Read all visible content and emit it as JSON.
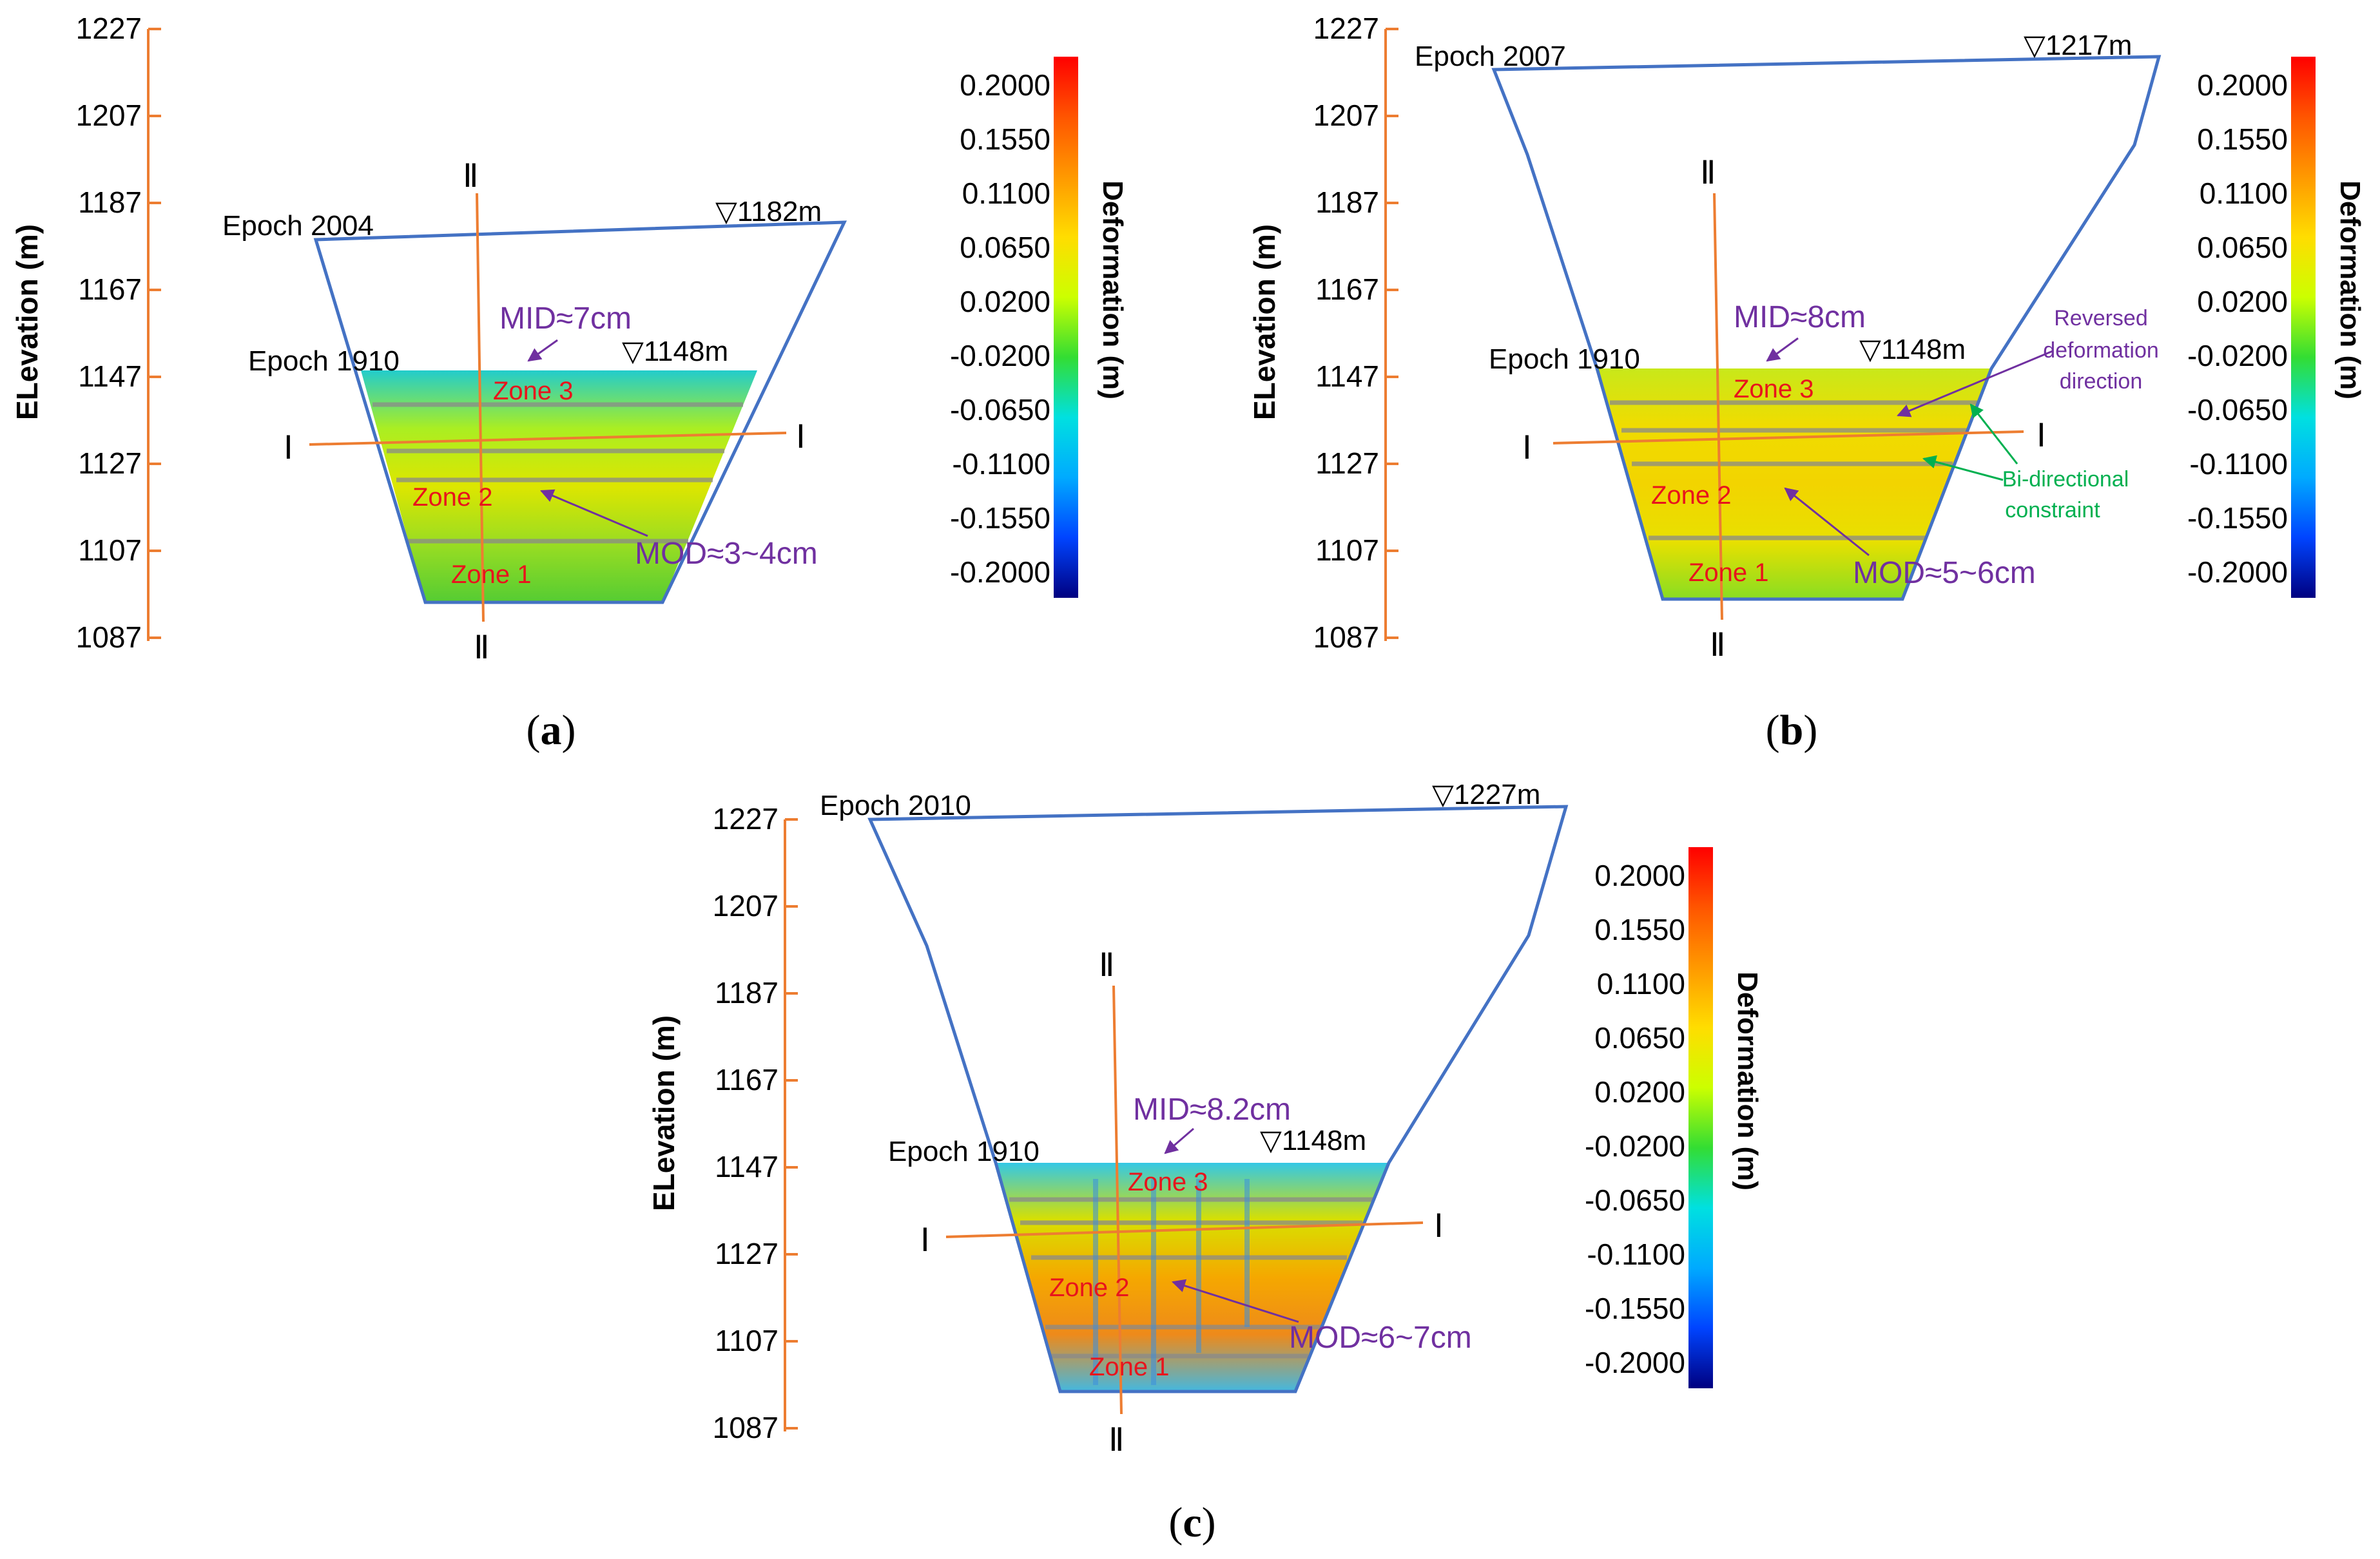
{
  "colors": {
    "outline": "#4472c4",
    "section_line": "#ed7d31",
    "axis": "#ed7d31",
    "annotation": "#7030a0",
    "zone_label": "#e8141c",
    "green_annotation": "#00b050",
    "text": "#000000"
  },
  "colorbar": {
    "title": "Deformation (m)",
    "ticks": [
      "0.2000",
      "0.1550",
      "0.1100",
      "0.0650",
      "0.0200",
      "-0.0200",
      "-0.0650",
      "-0.1100",
      "-0.1550",
      "-0.2000"
    ],
    "stops": [
      "#ff0000",
      "#ff5500",
      "#ff9900",
      "#ffdd00",
      "#ccff00",
      "#33dd33",
      "#00e0e0",
      "#00aaff",
      "#0044ff",
      "#000080"
    ]
  },
  "axis": {
    "title": "ELevation (m)",
    "ticks": [
      "1227",
      "1207",
      "1187",
      "1167",
      "1147",
      "1127",
      "1107",
      "1087"
    ]
  },
  "panels": [
    {
      "id": "a",
      "caption_letter": "a",
      "epoch_top": "Epoch 2004",
      "top_level": "▽1182m",
      "epoch_base": "Epoch 1910",
      "base_level": "▽1148m",
      "mid_label": "MID≈7cm",
      "mod_label": "MOD≈3~4cm",
      "zones": [
        "Zone 1",
        "Zone 2",
        "Zone 3"
      ],
      "section_horizontal": "Ⅰ",
      "section_vertical": "Ⅱ",
      "palette": [
        "#22cccc",
        "#aaee22",
        "#dde600",
        "#99dd22",
        "#55cc33"
      ]
    },
    {
      "id": "b",
      "caption_letter": "b",
      "epoch_top": "Epoch 2007",
      "top_level": "▽1217m",
      "epoch_base": "Epoch 1910",
      "base_level": "▽1148m",
      "mid_label": "MID≈8cm",
      "mod_label": "MOD≈5~6cm",
      "zones": [
        "Zone 1",
        "Zone 2",
        "Zone 3"
      ],
      "section_horizontal": "Ⅰ",
      "section_vertical": "Ⅱ",
      "reversed_label": [
        "Reversed",
        "deformation",
        "direction"
      ],
      "bidirectional_label": [
        "Bi-directional",
        "constraint"
      ],
      "palette": [
        "#c8e81a",
        "#f0dc00",
        "#f2d400",
        "#e8e000",
        "#88dd22"
      ]
    },
    {
      "id": "c",
      "caption_letter": "c",
      "epoch_top": "Epoch 2010",
      "top_level": "▽1227m",
      "epoch_base": "Epoch 1910",
      "base_level": "▽1148m",
      "mid_label": "MID≈8.2cm",
      "mod_label": "MOD≈6~7cm",
      "zones": [
        "Zone 1",
        "Zone 2",
        "Zone 3"
      ],
      "section_horizontal": "Ⅰ",
      "section_vertical": "Ⅱ",
      "palette": [
        "#33c8e6",
        "#d8e000",
        "#f5a800",
        "#ee8a1a",
        "#44b8e0"
      ]
    }
  ]
}
